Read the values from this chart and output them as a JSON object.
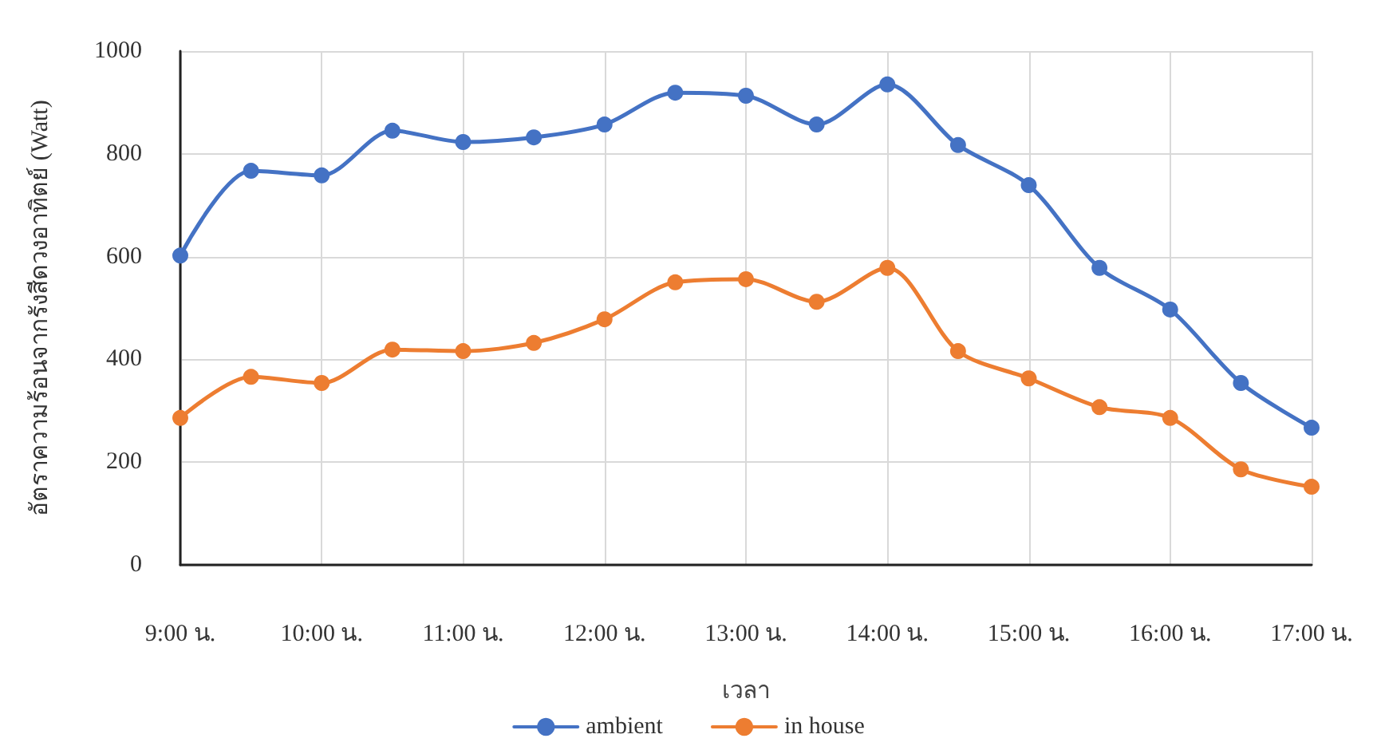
{
  "chart_data": {
    "type": "line",
    "xlabel": "เวลา",
    "ylabel": "อัตราความร้อนจากรังสีดวงอาทิตย์ (Watt)",
    "categories": [
      "9:00 น.",
      null,
      "10:00 น.",
      null,
      "11:00 น.",
      null,
      "12:00 น.",
      null,
      "13:00 น.",
      null,
      "14:00 น.",
      null,
      "15:00 น.",
      null,
      "16:00 น.",
      null,
      "17:00 น."
    ],
    "series": [
      {
        "name": "ambient",
        "color": "#4472c4",
        "values": [
          602,
          767,
          758,
          845,
          823,
          832,
          857,
          919,
          913,
          857,
          935,
          817,
          739,
          578,
          497,
          354,
          267
        ]
      },
      {
        "name": "in house",
        "color": "#ed7d31",
        "values": [
          286,
          366,
          354,
          419,
          416,
          432,
          478,
          550,
          556,
          512,
          578,
          416,
          363,
          307,
          286,
          186,
          152
        ]
      }
    ],
    "ylim": [
      0,
      1000
    ],
    "yticks": [
      0,
      200,
      400,
      600,
      800,
      1000
    ],
    "grid": true,
    "legend": "bottom",
    "marker": "circle",
    "line_style": "solid"
  }
}
